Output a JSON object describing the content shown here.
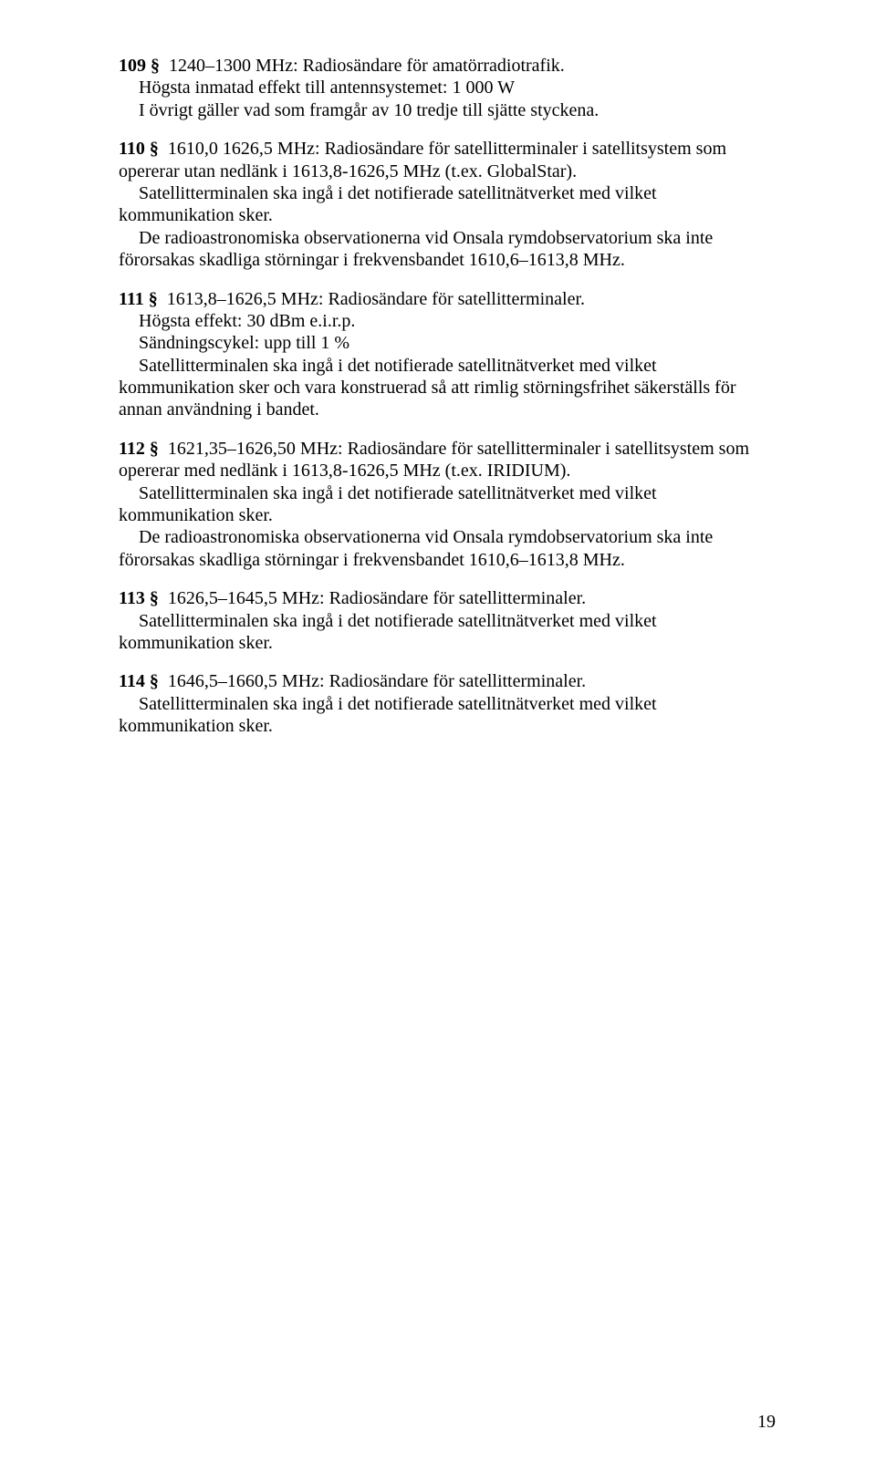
{
  "sections": {
    "s109": {
      "head_label": "109 §",
      "head_text": "1240–1300 MHz: Radiosändare för amatörradiotrafik.",
      "line1": "Högsta inmatad effekt till antennsystemet: 1 000 W",
      "line2": "I övrigt gäller vad som framgår av 10 tredje till sjätte styckena."
    },
    "s110": {
      "head_label": "110 §",
      "head_text": "1610,0 1626,5 MHz: Radiosändare för satellitterminaler i satellitsystem som opererar utan nedlänk i 1613,8-1626,5 MHz (t.ex. GlobalStar).",
      "p1": "Satellitterminalen ska ingå i det notifierade satellitnätverket med vilket kommunikation sker.",
      "p2": "De radioastronomiska observationerna vid Onsala rymdobservatorium ska inte förorsakas skadliga störningar i frekvensbandet 1610,6–1613,8 MHz."
    },
    "s111": {
      "head_label": "111 §",
      "head_text": "1613,8–1626,5 MHz: Radiosändare för satellitterminaler.",
      "line1": "Högsta effekt: 30 dBm e.i.r.p.",
      "line2": "Sändningscykel: upp till 1 %",
      "line3": "Satellitterminalen ska ingå i det notifierade satellitnätverket med vilket kommunikation sker och vara konstruerad så att rimlig störningsfrihet säkerställs för annan användning i bandet."
    },
    "s112": {
      "head_label": "112 §",
      "head_text": "1621,35–1626,50 MHz: Radiosändare för satellitterminaler i satellitsystem som opererar med nedlänk i 1613,8-1626,5 MHz (t.ex. IRIDIUM).",
      "p1": "Satellitterminalen ska ingå i det notifierade satellitnätverket med vilket kommunikation sker.",
      "p2": "De radioastronomiska observationerna vid Onsala rymdobservatorium ska inte förorsakas skadliga störningar i frekvensbandet 1610,6–1613,8 MHz."
    },
    "s113": {
      "head_label": "113 §",
      "head_text": "1626,5–1645,5 MHz: Radiosändare för satellitterminaler.",
      "p1": "Satellitterminalen ska ingå i det notifierade satellitnätverket med vilket kommunikation sker."
    },
    "s114": {
      "head_label": "114 §",
      "head_text": "1646,5–1660,5 MHz: Radiosändare för satellitterminaler.",
      "p1": "Satellitterminalen ska ingå i det notifierade satellitnätverket med vilket kommunikation sker."
    }
  },
  "page_number": "19"
}
